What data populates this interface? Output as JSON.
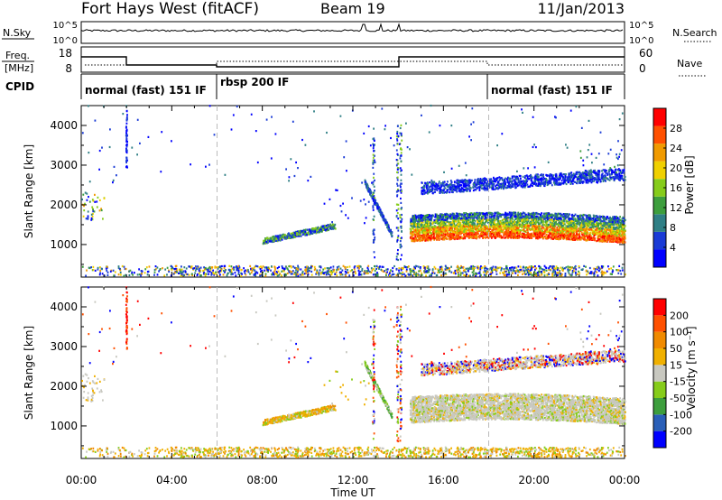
{
  "header": {
    "station": "Fort Hays West (fitACF)",
    "beam": "Beam 19",
    "date": "11/Jan/2013"
  },
  "noise_panel": {
    "left_label": "N.Sky",
    "right_label": "N.Search",
    "ticks": [
      "10^5",
      "10^0"
    ]
  },
  "freq_panel": {
    "left_label_1": "Freq.",
    "left_label_2": "[MHz]",
    "right_label": "Nave",
    "left_ticks": [
      "18",
      "8"
    ],
    "right_ticks": [
      "60",
      "0"
    ]
  },
  "cpid_panel": {
    "label": "CPID",
    "segments": [
      {
        "label": "normal (fast) 151 IF",
        "start_hour": 0
      },
      {
        "label": "rbsp 200 IF",
        "start_hour": 6
      },
      {
        "label": "normal (fast) 151 IF",
        "start_hour": 18
      }
    ]
  },
  "chart_data": [
    {
      "type": "heatmap",
      "title": "",
      "ylabel": "Slant Range [km]",
      "xlabel": "",
      "xlim": [
        0,
        24
      ],
      "ylim": [
        180,
        4500
      ],
      "yticks": [
        1000,
        2000,
        3000,
        4000
      ],
      "colorbar": {
        "label": "Power [dB]",
        "ticks": [
          "4",
          "8",
          "12",
          "16",
          "20",
          "24",
          "28"
        ],
        "range": [
          0,
          30
        ],
        "colors": [
          "#0000ff",
          "#1a3bd6",
          "#2f7f85",
          "#3d9e3d",
          "#86cc1a",
          "#f0d000",
          "#f09a00",
          "#ff5000",
          "#ff0000"
        ]
      }
    },
    {
      "type": "heatmap",
      "title": "",
      "ylabel": "Slant Range [km]",
      "xlabel": "Time UT",
      "xlim": [
        0,
        24
      ],
      "ylim": [
        180,
        4500
      ],
      "yticks": [
        1000,
        2000,
        3000,
        4000
      ],
      "xticks": [
        "00:00",
        "04:00",
        "08:00",
        "12:00",
        "16:00",
        "20:00",
        "00:00"
      ],
      "colorbar": {
        "label": "Velocity [m s⁻¹]",
        "ticks": [
          "200",
          "100",
          "50",
          "15",
          "-15",
          "-50",
          "-100",
          "-200"
        ],
        "colors": [
          "#0000ff",
          "#2a5fb8",
          "#3d9e3d",
          "#86cc1a",
          "#c8c8c0",
          "#f0b000",
          "#f08a00",
          "#ff5000",
          "#ff0000"
        ]
      }
    }
  ]
}
